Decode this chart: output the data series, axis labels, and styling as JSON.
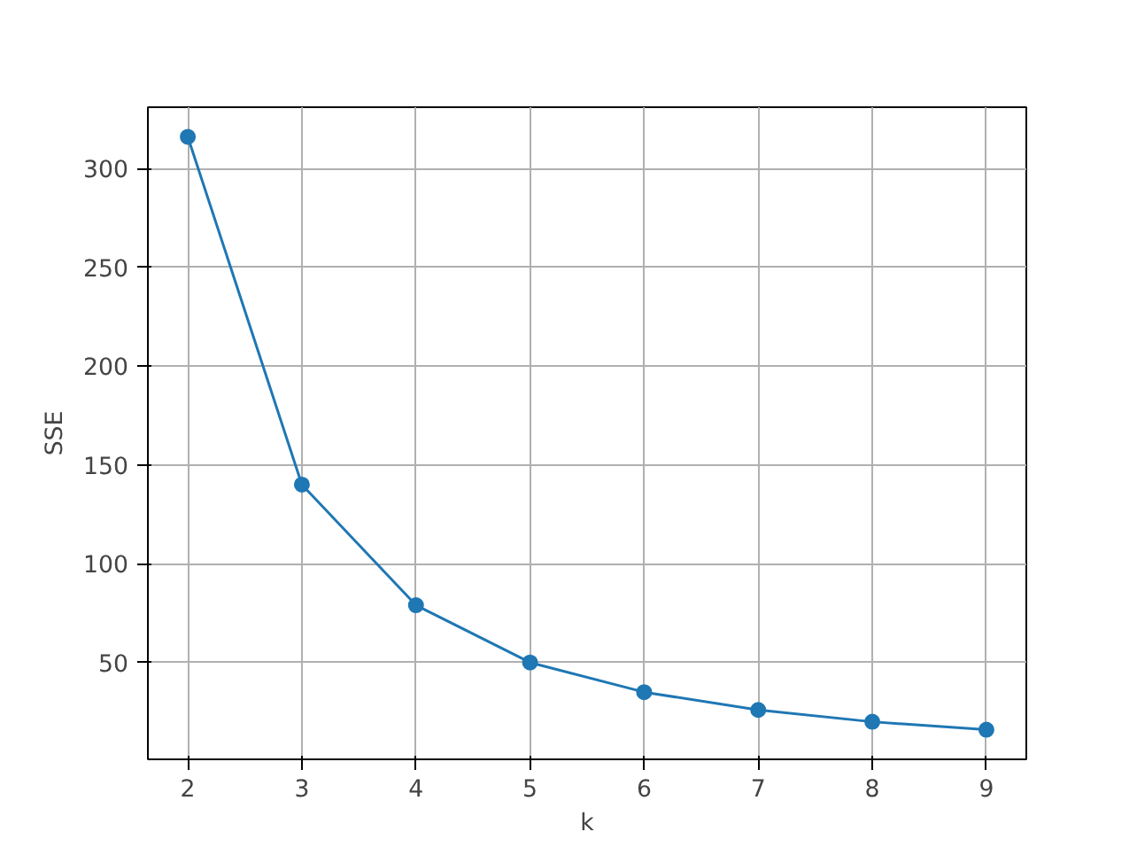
{
  "chart_data": {
    "type": "line",
    "xlabel": "k",
    "ylabel": "SSE",
    "x": [
      2,
      3,
      4,
      5,
      6,
      7,
      8,
      9
    ],
    "series": [
      {
        "color": "#1f77b4",
        "values": [
          316,
          140,
          79,
          50,
          35,
          26,
          20,
          16
        ]
      }
    ],
    "xlim": [
      1.65,
      9.35
    ],
    "ylim": [
      1,
      331
    ],
    "xticks": [
      2,
      3,
      4,
      5,
      6,
      7,
      8,
      9
    ],
    "yticks": [
      50,
      100,
      150,
      200,
      250,
      300
    ],
    "grid": true,
    "marker": "circle",
    "line_style": "solid"
  }
}
